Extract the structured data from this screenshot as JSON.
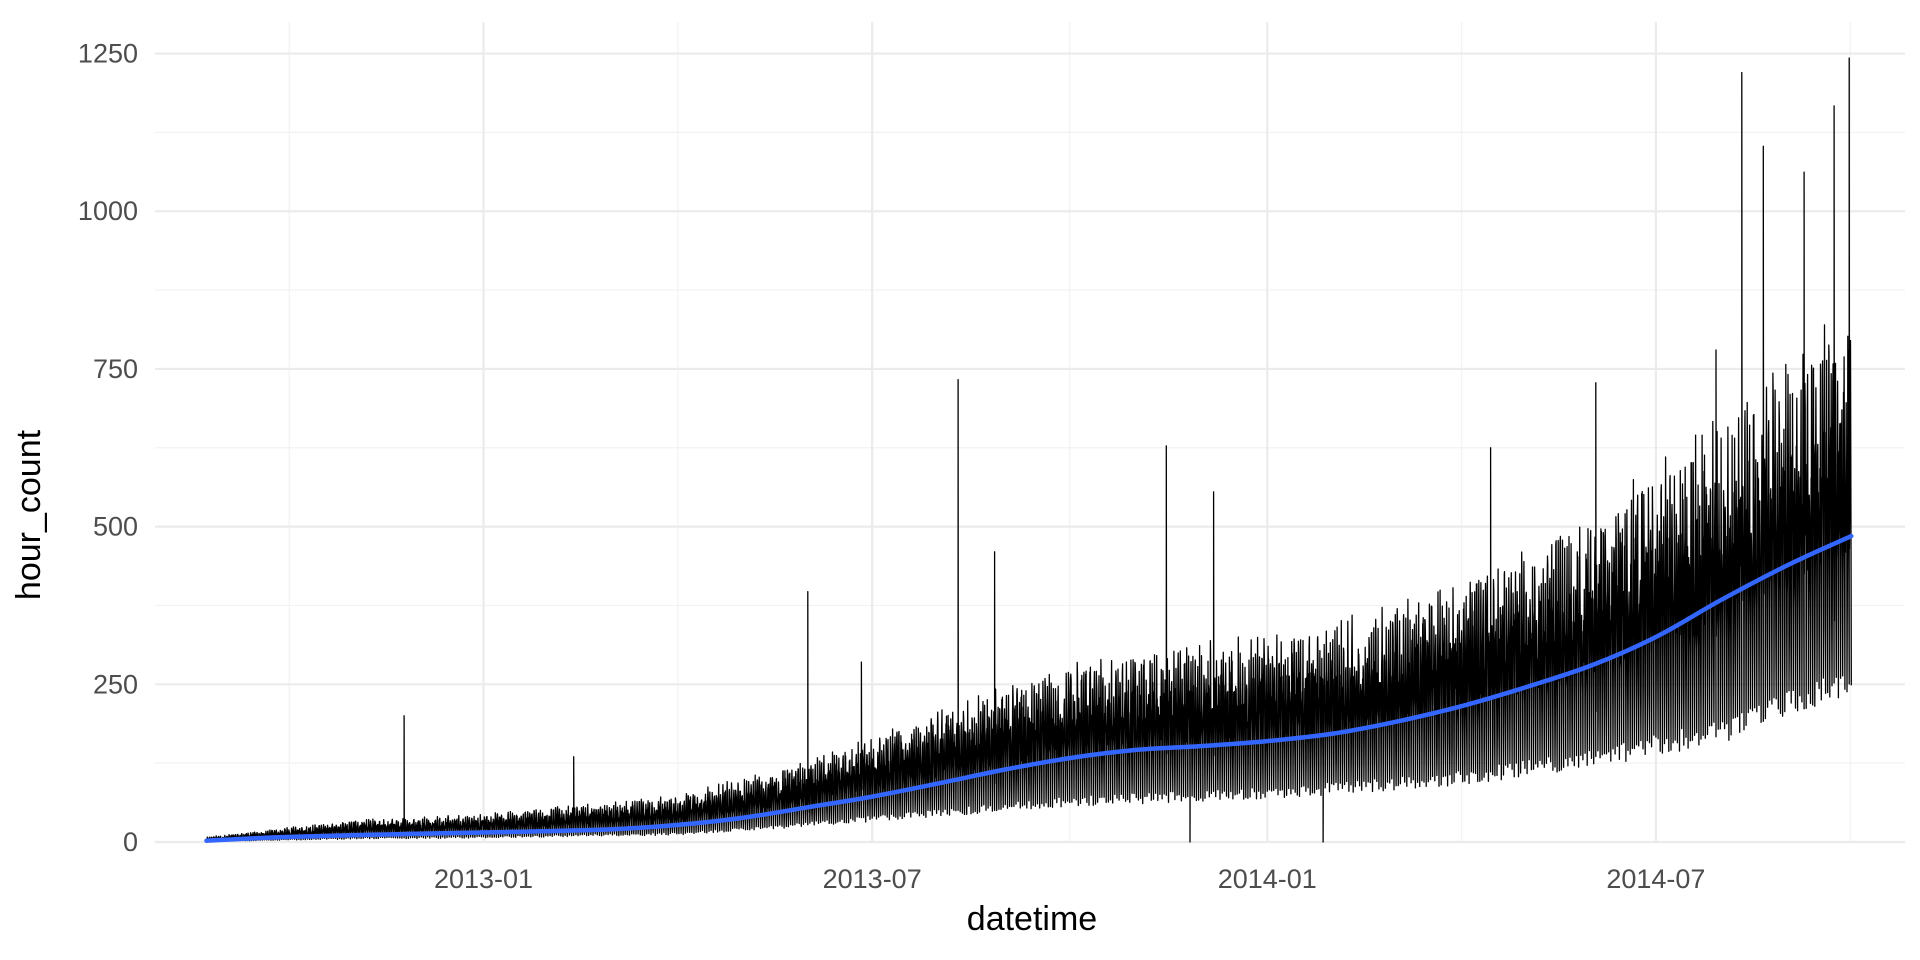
{
  "chart_data": {
    "type": "line",
    "title": "",
    "xlabel": "datetime",
    "ylabel": "hour_count",
    "ylim": [
      0,
      1300
    ],
    "xlim": [
      "2012-08-01",
      "2014-10-25"
    ],
    "y_ticks": [
      0,
      250,
      500,
      750,
      1000,
      1250
    ],
    "y_tick_labels": [
      "0",
      "250",
      "500",
      "750",
      "1000",
      "1250"
    ],
    "x_ticks": [
      "2013-01-01",
      "2013-07-01",
      "2014-01-01",
      "2014-07-01"
    ],
    "x_tick_labels": [
      "2013-01",
      "2013-07",
      "2014-01",
      "2014-07"
    ],
    "grid": true,
    "legend": "none",
    "series": [
      {
        "style": "raw hourly counts (dense line)",
        "color": "#000000",
        "date_range": [
          "2012-08-25",
          "2014-09-30"
        ],
        "typical_level": [
          {
            "date": "2012-08-25",
            "low": 0,
            "high": 8
          },
          {
            "date": "2012-11-01",
            "low": 2,
            "high": 35
          },
          {
            "date": "2013-01-01",
            "low": 3,
            "high": 45
          },
          {
            "date": "2013-04-01",
            "low": 5,
            "high": 75
          },
          {
            "date": "2013-06-01",
            "low": 15,
            "high": 130
          },
          {
            "date": "2013-08-01",
            "low": 25,
            "high": 210
          },
          {
            "date": "2013-10-01",
            "low": 35,
            "high": 290
          },
          {
            "date": "2013-12-01",
            "low": 40,
            "high": 320
          },
          {
            "date": "2014-02-01",
            "low": 50,
            "high": 350
          },
          {
            "date": "2014-04-01",
            "low": 60,
            "high": 420
          },
          {
            "date": "2014-06-01",
            "low": 80,
            "high": 530
          },
          {
            "date": "2014-08-01",
            "low": 110,
            "high": 680
          },
          {
            "date": "2014-09-30",
            "low": 180,
            "high": 860
          }
        ],
        "peaks": [
          {
            "date": "2012-11-25",
            "value": 200
          },
          {
            "date": "2013-02-12",
            "value": 135
          },
          {
            "date": "2013-06-01",
            "value": 397
          },
          {
            "date": "2013-06-26",
            "value": 285
          },
          {
            "date": "2013-08-10",
            "value": 733
          },
          {
            "date": "2013-08-27",
            "value": 460
          },
          {
            "date": "2013-11-15",
            "value": 628
          },
          {
            "date": "2013-12-07",
            "value": 555
          },
          {
            "date": "2014-04-15",
            "value": 625
          },
          {
            "date": "2014-06-03",
            "value": 728
          },
          {
            "date": "2014-07-29",
            "value": 780
          },
          {
            "date": "2014-08-10",
            "value": 1220
          },
          {
            "date": "2014-08-20",
            "value": 1103
          },
          {
            "date": "2014-09-08",
            "value": 1062
          },
          {
            "date": "2014-09-22",
            "value": 1167
          },
          {
            "date": "2014-09-29",
            "value": 1243
          }
        ],
        "dips": [
          {
            "date": "2013-11-26",
            "value": 0
          },
          {
            "date": "2014-01-27",
            "value": 0
          }
        ]
      },
      {
        "style": "smoothed trend",
        "color": "#3366ff",
        "points": [
          {
            "date": "2012-08-25",
            "value": 2
          },
          {
            "date": "2012-10-01",
            "value": 8
          },
          {
            "date": "2012-12-01",
            "value": 13
          },
          {
            "date": "2013-01-15",
            "value": 16
          },
          {
            "date": "2013-03-01",
            "value": 20
          },
          {
            "date": "2013-04-01",
            "value": 27
          },
          {
            "date": "2013-05-01",
            "value": 38
          },
          {
            "date": "2013-06-01",
            "value": 55
          },
          {
            "date": "2013-07-01",
            "value": 72
          },
          {
            "date": "2013-08-01",
            "value": 93
          },
          {
            "date": "2013-09-01",
            "value": 115
          },
          {
            "date": "2013-10-01",
            "value": 133
          },
          {
            "date": "2013-11-01",
            "value": 146
          },
          {
            "date": "2013-12-01",
            "value": 152
          },
          {
            "date": "2014-01-01",
            "value": 160
          },
          {
            "date": "2014-02-01",
            "value": 172
          },
          {
            "date": "2014-03-01",
            "value": 190
          },
          {
            "date": "2014-04-01",
            "value": 215
          },
          {
            "date": "2014-05-01",
            "value": 245
          },
          {
            "date": "2014-06-01",
            "value": 280
          },
          {
            "date": "2014-07-01",
            "value": 325
          },
          {
            "date": "2014-08-01",
            "value": 385
          },
          {
            "date": "2014-09-01",
            "value": 440
          },
          {
            "date": "2014-09-30",
            "value": 485
          }
        ]
      }
    ]
  }
}
